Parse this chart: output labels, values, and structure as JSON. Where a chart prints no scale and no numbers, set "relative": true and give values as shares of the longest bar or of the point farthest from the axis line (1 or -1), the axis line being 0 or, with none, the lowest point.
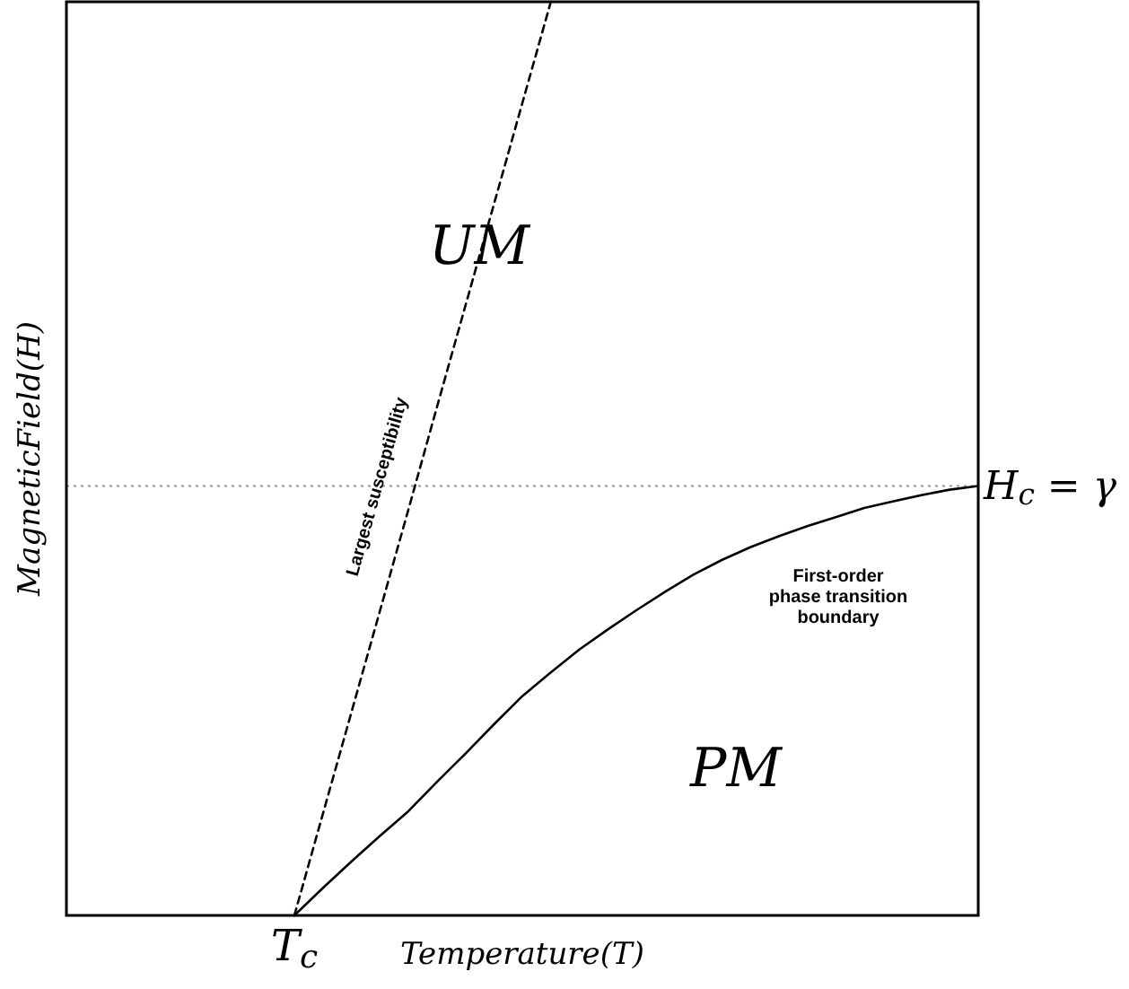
{
  "chart_data": {
    "type": "line",
    "relative": true,
    "xlabel": "Temperature(T)",
    "ylabel": "MagneticField(H)",
    "categories": [
      null,
      null,
      null,
      null,
      null,
      null,
      null,
      null,
      null,
      null,
      null,
      null,
      null,
      null,
      null,
      null,
      null,
      null,
      null,
      null,
      null,
      null,
      null,
      null,
      null,
      null,
      null,
      null,
      null,
      null,
      null,
      null,
      null
    ],
    "series": [
      {
        "color": "#000000",
        "line_style": "dashed",
        "values": [
          null,
          null,
          null,
          null,
          null,
          null,
          null,
          null,
          0,
          0.111,
          0.222,
          0.333,
          0.444,
          0.556,
          0.667,
          0.778,
          0.889,
          1,
          null,
          null,
          null,
          null,
          null,
          null,
          null,
          null,
          null,
          null,
          null,
          null,
          null,
          null,
          null
        ]
      },
      {
        "color": "#000000",
        "line_style": "solid",
        "values": [
          null,
          null,
          null,
          null,
          null,
          null,
          null,
          null,
          0,
          0.03,
          0.059,
          0.087,
          0.114,
          0.146,
          0.177,
          0.209,
          0.24,
          0.266,
          0.291,
          0.313,
          0.334,
          0.354,
          0.373,
          0.389,
          0.403,
          0.415,
          0.426,
          0.436,
          0.446,
          0.453,
          0.46,
          0.466,
          0.47
        ]
      }
    ],
    "ref_lines": [
      {
        "axis": "y",
        "value": 0.47,
        "label": "H$_{c}$ = γ",
        "color": "#999999",
        "line_style": "dotted"
      }
    ],
    "annotations": [
      "UM",
      "PM",
      "Largest susceptibility",
      "First-order phase transition boundary",
      "T$_{c}$"
    ]
  }
}
